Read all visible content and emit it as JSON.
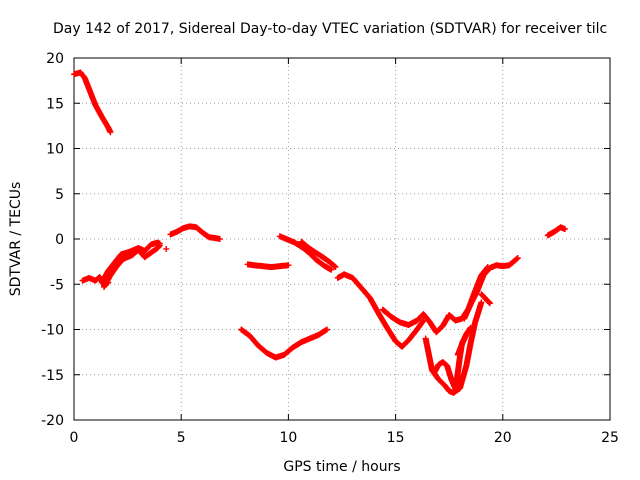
{
  "chart_data": {
    "type": "scatter",
    "title": "Day 142 of 2017, Sidereal Day-to-day VTEC variation (SDTVAR) for receiver tilc",
    "xlabel": "GPS time / hours",
    "ylabel": "SDTVAR / TECUs",
    "xlim": [
      0,
      25
    ],
    "ylim": [
      -20,
      20
    ],
    "xticks": [
      0,
      5,
      10,
      15,
      20,
      25
    ],
    "yticks": [
      -20,
      -15,
      -10,
      -5,
      0,
      5,
      10,
      15,
      20
    ],
    "grid": true,
    "marker": "+",
    "color": "#ff0000",
    "series": [
      {
        "x": [
          0.0,
          0.3,
          0.5,
          0.8,
          1.0,
          1.3,
          1.6,
          1.7
        ],
        "y": [
          18.2,
          18.4,
          17.8,
          16.0,
          14.8,
          13.5,
          12.3,
          11.8
        ]
      },
      {
        "x": [
          0.4,
          0.7,
          1.0,
          1.2,
          1.4,
          1.6
        ],
        "y": [
          -4.6,
          -4.3,
          -4.6,
          -4.2,
          -5.1,
          -4.8
        ]
      },
      {
        "x": [
          1.3,
          1.6,
          1.9,
          2.2,
          2.6,
          3.0,
          3.3,
          3.6,
          3.9,
          4.0
        ],
        "y": [
          -4.8,
          -3.5,
          -2.6,
          -1.7,
          -1.4,
          -1.0,
          -1.3,
          -0.6,
          -0.4,
          -0.5
        ]
      },
      {
        "x": [
          1.4,
          1.7,
          2.0,
          2.3,
          2.7,
          3.0,
          3.3,
          3.6,
          3.9,
          4.0
        ],
        "y": [
          -5.3,
          -4.0,
          -3.0,
          -2.2,
          -1.8,
          -1.2,
          -2.0,
          -1.5,
          -1.0,
          -0.7
        ]
      },
      {
        "x": [
          4.3
        ],
        "y": [
          -1.1
        ]
      },
      {
        "x": [
          4.5,
          4.8,
          5.1,
          5.4,
          5.7,
          6.0,
          6.3,
          6.6,
          6.8
        ],
        "y": [
          0.5,
          0.8,
          1.2,
          1.4,
          1.3,
          0.7,
          0.2,
          0.1,
          0.0
        ]
      },
      {
        "x": [
          8.1,
          8.4,
          8.8,
          9.2,
          9.6,
          10.0
        ],
        "y": [
          -2.8,
          -2.9,
          -3.0,
          -3.1,
          -3.0,
          -2.9
        ]
      },
      {
        "x": [
          7.8,
          8.2,
          8.6,
          9.0,
          9.4,
          9.8,
          10.2,
          10.6,
          11.0,
          11.4,
          11.8
        ],
        "y": [
          -10.0,
          -10.7,
          -11.8,
          -12.6,
          -13.1,
          -12.8,
          -12.0,
          -11.4,
          -11.0,
          -10.6,
          -10.0
        ]
      },
      {
        "x": [
          9.6,
          9.9,
          10.3,
          10.7,
          11.0,
          11.3,
          11.7,
          12.0
        ],
        "y": [
          0.3,
          0.0,
          -0.4,
          -1.0,
          -1.6,
          -2.3,
          -3.0,
          -3.4
        ]
      },
      {
        "x": [
          10.6,
          10.9,
          11.2,
          11.6,
          11.9,
          12.2
        ],
        "y": [
          -0.3,
          -0.9,
          -1.4,
          -2.0,
          -2.5,
          -3.1
        ]
      },
      {
        "x": [
          12.3,
          12.6,
          13.0,
          13.4,
          13.8,
          14.2,
          14.6,
          15.0,
          15.3,
          15.6,
          16.0,
          16.3
        ],
        "y": [
          -4.3,
          -3.9,
          -4.3,
          -5.4,
          -6.5,
          -8.2,
          -9.8,
          -11.3,
          -11.9,
          -11.2,
          -10.0,
          -9.0
        ]
      },
      {
        "x": [
          14.4,
          14.8,
          15.2,
          15.6,
          16.0,
          16.3,
          16.6,
          16.9,
          17.2,
          17.5,
          17.8,
          18.1,
          18.4,
          18.7,
          19.0,
          19.3
        ],
        "y": [
          -7.8,
          -8.6,
          -9.2,
          -9.5,
          -9.0,
          -8.3,
          -9.2,
          -10.3,
          -9.6,
          -8.4,
          -9.0,
          -8.8,
          -7.7,
          -5.8,
          -4.0,
          -3.1
        ]
      },
      {
        "x": [
          16.4,
          16.7,
          17.0,
          17.3,
          17.5,
          17.7,
          18.0,
          18.3,
          18.5,
          18.7,
          19.0
        ],
        "y": [
          -11.0,
          -14.5,
          -15.5,
          -16.2,
          -16.8,
          -17.0,
          -16.5,
          -14.0,
          -11.5,
          -9.3,
          -7.0
        ]
      },
      {
        "x": [
          16.8,
          17.0,
          17.2,
          17.4,
          17.6,
          17.8,
          18.0,
          18.1,
          18.3
        ],
        "y": [
          -14.8,
          -13.9,
          -13.6,
          -14.0,
          -15.5,
          -16.6,
          -13.0,
          -11.5,
          -10.6
        ]
      },
      {
        "x": [
          17.9,
          18.1,
          18.3,
          18.5
        ],
        "y": [
          -12.8,
          -11.6,
          -10.5,
          -9.8
        ]
      },
      {
        "x": [
          18.2,
          18.5,
          18.8,
          19.1,
          19.4,
          19.7,
          20.0,
          20.3,
          20.5,
          20.7
        ],
        "y": [
          -8.8,
          -7.2,
          -5.8,
          -4.0,
          -3.2,
          -2.9,
          -3.0,
          -2.9,
          -2.5,
          -2.1
        ]
      },
      {
        "x": [
          19.0,
          19.2,
          19.4
        ],
        "y": [
          -6.1,
          -6.6,
          -7.1
        ]
      },
      {
        "x": [
          22.1,
          22.4,
          22.7,
          22.9
        ],
        "y": [
          0.4,
          0.8,
          1.3,
          1.1
        ]
      }
    ]
  }
}
